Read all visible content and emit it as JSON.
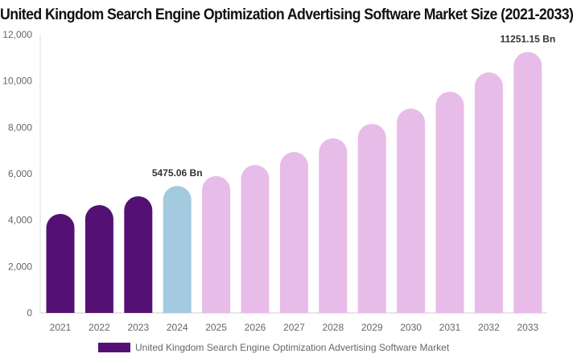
{
  "chart_data": {
    "type": "bar",
    "title": "United Kingdom Search Engine Optimization Advertising Software Market Size (2021-2033)",
    "categories": [
      "2021",
      "2022",
      "2023",
      "2024",
      "2025",
      "2026",
      "2027",
      "2028",
      "2029",
      "2030",
      "2031",
      "2032",
      "2033"
    ],
    "series": [
      {
        "name": "United Kingdom Search Engine Optimization Advertising Software Market",
        "values": [
          4270,
          4650,
          5030,
          5475.06,
          5900,
          6380,
          6940,
          7530,
          8150,
          8810,
          9540,
          10370,
          11251.15
        ]
      }
    ],
    "data_labels": [
      {
        "index": 3,
        "text": "5475.06 Bn"
      },
      {
        "index": 12,
        "text": "11251.15 Bn"
      }
    ],
    "ylim": [
      0,
      12000
    ],
    "yticks": [
      0,
      2000,
      4000,
      6000,
      8000,
      10000,
      12000
    ],
    "ytick_labels": [
      "0",
      "2,000",
      "4,000",
      "6,000",
      "8,000",
      "10,000",
      "12,000"
    ],
    "colors": {
      "historical": "#541173",
      "current": "#a4cadf",
      "forecast": "#e8bce8"
    },
    "grid": false,
    "legend_position": "bottom"
  }
}
